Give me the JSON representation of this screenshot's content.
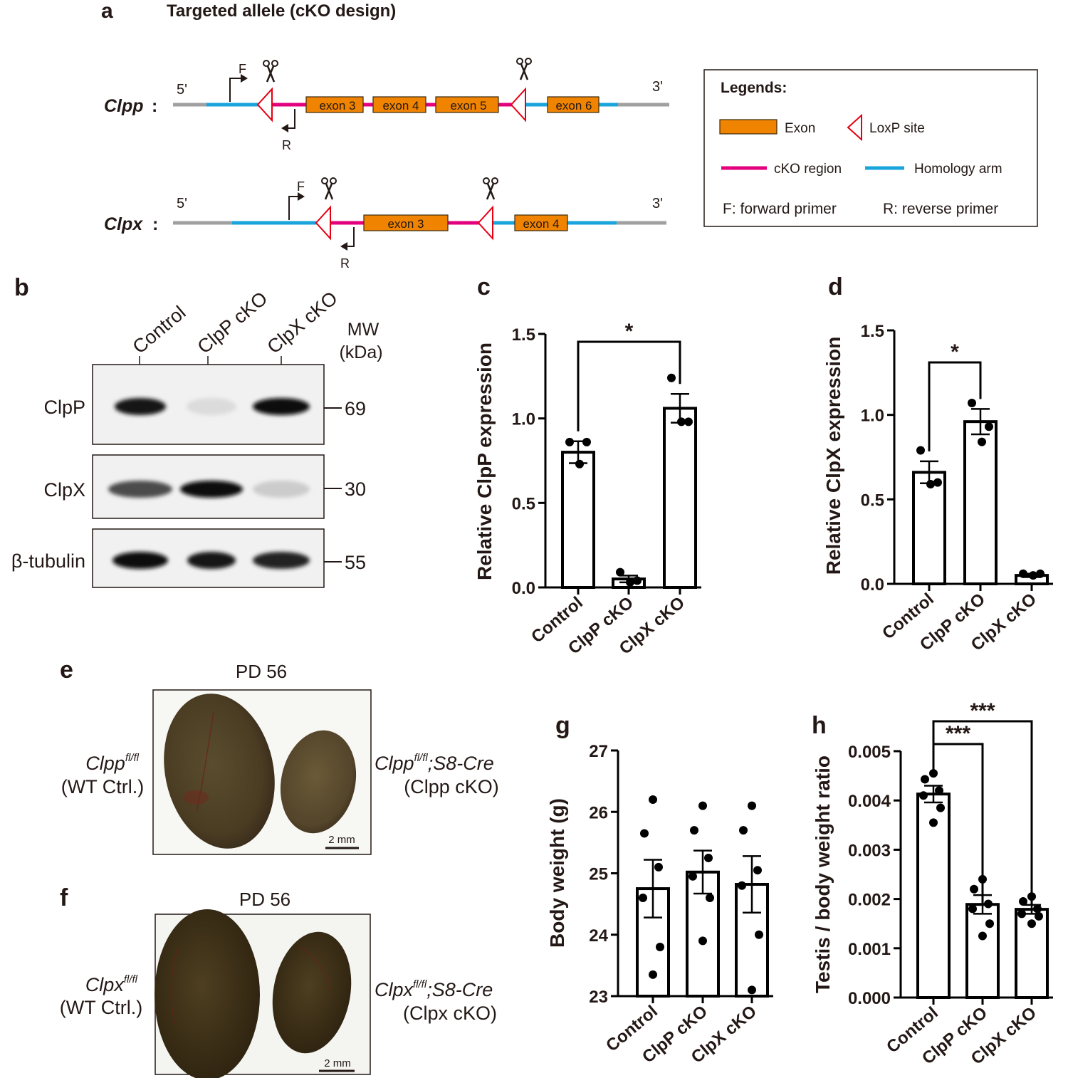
{
  "panel_labels": {
    "a": "a",
    "b": "b",
    "c": "c",
    "d": "d",
    "e": "e",
    "f": "f",
    "g": "g",
    "h": "h"
  },
  "panel_a": {
    "title": "Targeted allele (cKO design)",
    "clpp": {
      "gene": "Clpp",
      "colon": ":",
      "five": "5'",
      "three": "3'",
      "exons": [
        "exon 3",
        "exon 4",
        "exon 5",
        "exon 6"
      ],
      "forward": "F",
      "reverse": "R"
    },
    "clpx": {
      "gene": "Clpx",
      "colon": ":",
      "five": "5'",
      "three": "3'",
      "exons": [
        "exon 3",
        "exon 4"
      ],
      "forward": "F",
      "reverse": "R"
    },
    "legend": {
      "title": "Legends:",
      "exon": "Exon",
      "loxp": "LoxP site",
      "cko_region": "cKO region",
      "homology_arm": "Homology arm",
      "forward_primer": "F: forward primer",
      "reverse_primer": "R: reverse primer"
    },
    "colors": {
      "exon": "#f08400",
      "cko": "#e3007e",
      "homology": "#19a4dc",
      "backbone": "#a0a0a0",
      "loxp": "#e60012"
    }
  },
  "panel_b": {
    "lanes": [
      "Control",
      "ClpP cKO",
      "ClpX cKO"
    ],
    "mw_title": [
      "MW",
      "(kDa)"
    ],
    "blots": [
      {
        "protein": "ClpP",
        "mw": "69"
      },
      {
        "protein": "ClpX",
        "mw": "30"
      },
      {
        "protein": "β-tubulin",
        "mw": "55"
      }
    ],
    "band_intensity": [
      [
        0.95,
        0.05,
        1.0
      ],
      [
        0.7,
        1.0,
        0.12
      ],
      [
        1.0,
        0.95,
        0.9
      ]
    ]
  },
  "panel_e": {
    "title": "PD 56",
    "left_label": {
      "gene": "Clpp",
      "sup": "fl/fl",
      "sub": "(WT Ctrl.)"
    },
    "right_label": {
      "gene": "Clpp",
      "sup": "fl/fl",
      "cre": ";S8-Cre",
      "sub": "(Clpp cKO)"
    },
    "scale_bar": "2 mm"
  },
  "panel_f": {
    "title": "PD 56",
    "left_label": {
      "gene": "Clpx",
      "sup": "fl/fl",
      "sub": "(WT Ctrl.)"
    },
    "right_label": {
      "gene": "Clpx",
      "sup": "fl/fl",
      "cre": ";S8-Cre",
      "sub": "(Clpx cKO)"
    },
    "scale_bar": "2 mm"
  },
  "chart_data": [
    {
      "panel": "c",
      "type": "bar",
      "categories": [
        "Control",
        "ClpP cKO",
        "ClpX cKO"
      ],
      "values": [
        0.8,
        0.05,
        1.06
      ],
      "errors": [
        0.065,
        0.02,
        0.085
      ],
      "points": [
        [
          0.86,
          0.86,
          0.73
        ],
        [
          0.09,
          0.04,
          0.03
        ],
        [
          1.24,
          0.98,
          0.98
        ]
      ],
      "ylabel": "Relative ClpP expression",
      "ylim": [
        0,
        1.5
      ],
      "yticks": [
        "0.0",
        "0.5",
        "1.0",
        "1.5"
      ],
      "significance": [
        {
          "from": 0,
          "to": 2,
          "label": "*"
        }
      ]
    },
    {
      "panel": "d",
      "type": "bar",
      "categories": [
        "Control",
        "ClpP cKO",
        "ClpX cKO"
      ],
      "values": [
        0.66,
        0.96,
        0.05
      ],
      "errors": [
        0.065,
        0.075,
        0.01
      ],
      "points": [
        [
          0.79,
          0.6,
          0.59
        ],
        [
          1.07,
          0.93,
          0.84
        ],
        [
          0.06,
          0.06,
          0.05
        ]
      ],
      "ylabel": "Relative ClpX expression",
      "ylim": [
        0,
        1.5
      ],
      "yticks": [
        "0.0",
        "0.5",
        "1.0",
        "1.5"
      ],
      "significance": [
        {
          "from": 0,
          "to": 1,
          "label": "*"
        }
      ]
    },
    {
      "panel": "g",
      "type": "bar",
      "categories": [
        "Control",
        "ClpP cKO",
        "ClpX cKO"
      ],
      "values": [
        24.75,
        25.02,
        24.82
      ],
      "errors": [
        0.47,
        0.35,
        0.46
      ],
      "points": [
        [
          26.2,
          25.65,
          25.1,
          24.6,
          23.8,
          23.35
        ],
        [
          26.1,
          25.7,
          25.25,
          24.95,
          24.6,
          23.9
        ],
        [
          26.1,
          25.7,
          25.05,
          24.8,
          24.0,
          23.1
        ]
      ],
      "ylabel": "Body weight (g)",
      "ylim": [
        23,
        27
      ],
      "yticks": [
        "23",
        "24",
        "25",
        "26",
        "27"
      ],
      "significance": []
    },
    {
      "panel": "h",
      "type": "bar",
      "categories": [
        "Control",
        "ClpP cKO",
        "ClpX cKO"
      ],
      "values": [
        0.00413,
        0.00189,
        0.00179
      ],
      "errors": [
        0.00017,
        0.00019,
        9e-05
      ],
      "points": [
        [
          0.00455,
          0.00443,
          0.0042,
          0.0041,
          0.00385,
          0.00355
        ],
        [
          0.0024,
          0.0022,
          0.0019,
          0.0018,
          0.0015,
          0.00125
        ],
        [
          0.00205,
          0.00195,
          0.0018,
          0.0017,
          0.00165,
          0.0015
        ]
      ],
      "ylabel": "Testis / body weight ratio",
      "ylim": [
        0,
        0.005
      ],
      "yticks": [
        "0.000",
        "0.001",
        "0.002",
        "0.003",
        "0.004",
        "0.005"
      ],
      "significance": [
        {
          "from": 0,
          "to": 1,
          "label": "***"
        },
        {
          "from": 0,
          "to": 2,
          "label": "***"
        }
      ]
    }
  ]
}
